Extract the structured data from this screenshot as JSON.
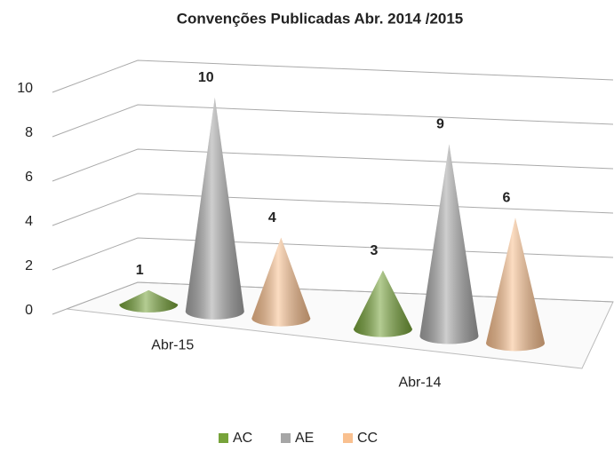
{
  "chart_data": {
    "type": "cone3d",
    "title": "Convenções Publicadas Abr. 2014 /2015",
    "categories": [
      "Abr-15",
      "Abr-14"
    ],
    "series": [
      {
        "name": "AC",
        "color": "#77a33a",
        "values": [
          1,
          3
        ]
      },
      {
        "name": "AE",
        "color": "#a6a6a6",
        "values": [
          10,
          9
        ]
      },
      {
        "name": "CC",
        "color": "#f9c08f",
        "values": [
          4,
          6
        ]
      }
    ],
    "ylim": [
      0,
      10
    ],
    "yticks": [
      0,
      2,
      4,
      6,
      8,
      10
    ],
    "grid": true,
    "legend": "bottom"
  }
}
